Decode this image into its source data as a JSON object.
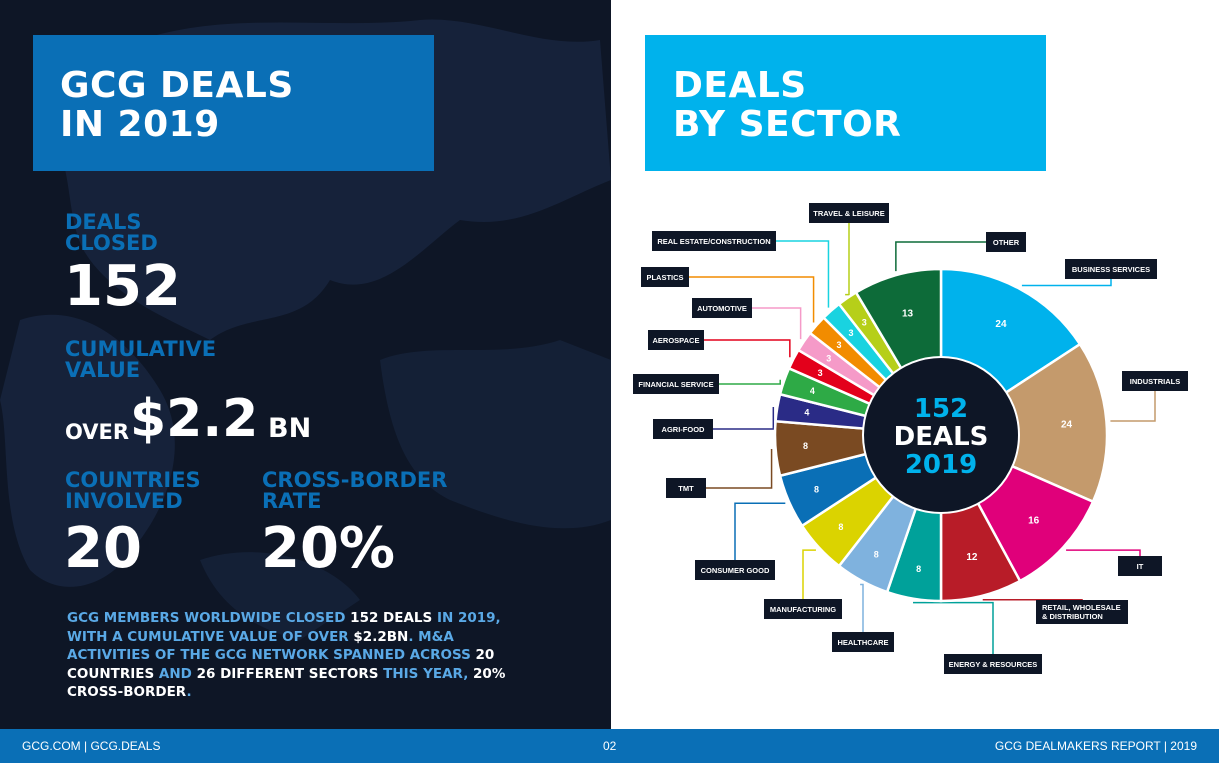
{
  "left": {
    "title_line1": "GCG DEALS",
    "title_line2": "IN 2019",
    "deals_label_1": "DEALS",
    "deals_label_2": "CLOSED",
    "deals_value": "152",
    "value_label_1": "CUMULATIVE",
    "value_label_2": "VALUE",
    "value_prefix": "OVER",
    "value_amount": "$2.2",
    "value_unit": "BN",
    "countries_label_1": "COUNTRIES",
    "countries_label_2": "INVOLVED",
    "countries_value": "20",
    "crossborder_label_1": "CROSS-BORDER",
    "crossborder_label_2": "RATE",
    "crossborder_value": "20%",
    "paragraph": [
      {
        "text": "GCG MEMBERS WORLDWIDE CLOSED ",
        "white": false
      },
      {
        "text": "152 DEALS",
        "white": true
      },
      {
        "text": " IN 2019, WITH A CUMULATIVE VALUE OF OVER ",
        "white": false
      },
      {
        "text": "$2.2BN",
        "white": true
      },
      {
        "text": ". M&A ACTIVITIES OF THE GCG NETWORK SPANNED ACROSS ",
        "white": false
      },
      {
        "text": "20 COUNTRIES",
        "white": true
      },
      {
        "text": " AND ",
        "white": false
      },
      {
        "text": "26 DIFFERENT SECTORS",
        "white": true
      },
      {
        "text": " THIS YEAR, ",
        "white": false
      },
      {
        "text": "20% CROSS-BORDER",
        "white": true
      },
      {
        "text": ".",
        "white": false
      }
    ]
  },
  "right": {
    "title_line1": "DEALS",
    "title_line2": "BY SECTOR"
  },
  "colors": {
    "dark_bg": "#0e1626",
    "brand_blue": "#0a6fb6",
    "sky_blue": "#00b2ec",
    "label_bg": "#0e1626"
  },
  "footer": {
    "left": "GCG.COM | GCG.DEALS",
    "center": "02",
    "right": "GCG DEALMAKERS REPORT | 2019"
  },
  "chart_data": {
    "type": "pie",
    "title": "DEALS BY SECTOR",
    "center_text": [
      "152",
      "DEALS",
      "2019"
    ],
    "total": 152,
    "slices": [
      {
        "label": "BUSINESS SERVICES",
        "value": 24,
        "color": "#00b2ec"
      },
      {
        "label": "INDUSTRIALS",
        "value": 24,
        "color": "#c49a6c"
      },
      {
        "label": "IT",
        "value": 16,
        "color": "#e0007a"
      },
      {
        "label": "RETAIL, WHOLESALE & DISTRIBUTION",
        "value": 12,
        "color": "#b81c28"
      },
      {
        "label": "ENERGY & RESOURCES",
        "value": 8,
        "color": "#00a19a"
      },
      {
        "label": "HEALTHCARE",
        "value": 8,
        "color": "#7fb2de"
      },
      {
        "label": "MANUFACTURING",
        "value": 8,
        "color": "#dbd300"
      },
      {
        "label": "CONSUMER GOOD",
        "value": 8,
        "color": "#0a6fb6"
      },
      {
        "label": "TMT",
        "value": 8,
        "color": "#7a4a22"
      },
      {
        "label": "AGRI-FOOD",
        "value": 4,
        "color": "#2a2b86"
      },
      {
        "label": "FINANCIAL SERVICE",
        "value": 4,
        "color": "#2eaa46"
      },
      {
        "label": "AEROSPACE",
        "value": 3,
        "color": "#e3001b"
      },
      {
        "label": "AUTOMOTIVE",
        "value": 3,
        "color": "#f59ac8"
      },
      {
        "label": "PLASTICS",
        "value": 3,
        "color": "#f28c00"
      },
      {
        "label": "REAL ESTATE/CONSTRUCTION",
        "value": 3,
        "color": "#19d3e0"
      },
      {
        "label": "TRAVEL & LEISURE",
        "value": 3,
        "color": "#b6cf19"
      },
      {
        "label": "OTHER",
        "value": 13,
        "color": "#0d6b39"
      }
    ]
  }
}
